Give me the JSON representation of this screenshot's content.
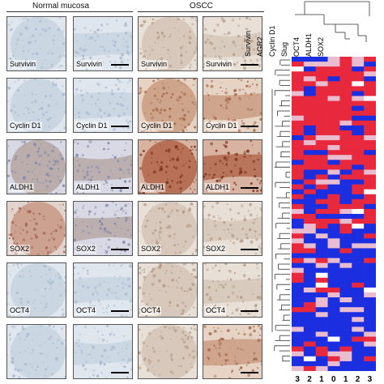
{
  "headers": {
    "normal": "Normal mucosa",
    "oscc": "OSCC"
  },
  "rows": [
    {
      "marker": "Survivin",
      "tiles": [
        {
          "label": "Survivin",
          "style": "core",
          "tint": "light"
        },
        {
          "label": "Survivin",
          "style": "zoom",
          "tint": "light"
        },
        {
          "label": "Survivin",
          "style": "core",
          "tint": "tan"
        },
        {
          "label": "Survivin",
          "style": "zoom",
          "tint": "tan"
        }
      ]
    },
    {
      "marker": "Cyclin D1",
      "tiles": [
        {
          "label": "Cyclin D1",
          "style": "core",
          "tint": "light"
        },
        {
          "label": "Cyclin D1",
          "style": "zoom",
          "tint": "light"
        },
        {
          "label": "Cyclin D1",
          "style": "core",
          "tint": "brown"
        },
        {
          "label": "Cyclin D1",
          "style": "zoom",
          "tint": "brown"
        }
      ]
    },
    {
      "marker": "ALDH1",
      "tiles": [
        {
          "label": "ALDH1",
          "style": "core",
          "tint": "mixed"
        },
        {
          "label": "ALDH1",
          "style": "zoom",
          "tint": "mixed"
        },
        {
          "label": "ALDH1",
          "style": "core",
          "tint": "dark"
        },
        {
          "label": "ALDH1",
          "style": "zoom",
          "tint": "dark"
        }
      ]
    },
    {
      "marker": "SOX2",
      "tiles": [
        {
          "label": "SOX2",
          "style": "core",
          "tint": "rust"
        },
        {
          "label": "SOX2",
          "style": "zoom",
          "tint": "mixed"
        },
        {
          "label": "SOX2",
          "style": "core",
          "tint": "tan"
        },
        {
          "label": "SOX2",
          "style": "zoom",
          "tint": "tan"
        }
      ]
    },
    {
      "marker": "OCT4",
      "tiles": [
        {
          "label": "OCT4",
          "style": "core",
          "tint": "light"
        },
        {
          "label": "OCT4",
          "style": "zoom",
          "tint": "light"
        },
        {
          "label": "OCT4",
          "style": "core",
          "tint": "tan"
        },
        {
          "label": "OCT4",
          "style": "zoom",
          "tint": "tan"
        }
      ]
    },
    {
      "marker": "",
      "tiles": [
        {
          "label": "",
          "style": "core",
          "tint": "light"
        },
        {
          "label": "",
          "style": "zoom",
          "tint": "light"
        },
        {
          "label": "",
          "style": "core",
          "tint": "tan"
        },
        {
          "label": "",
          "style": "zoom",
          "tint": "brown"
        }
      ]
    }
  ],
  "heatmap": {
    "columns": [
      "Survivin",
      "AGR2",
      "Cyclin D1",
      "Slug",
      "OCT4",
      "ALDH1",
      "SOX2"
    ],
    "cluster_numbers": [
      "3",
      "2",
      "1",
      "0",
      "1",
      "2",
      "3"
    ],
    "colors": {
      "high": "#e8283c",
      "low": "#1c2fe0",
      "mid": "#e9bcd0",
      "na": "#ffffff"
    }
  }
}
